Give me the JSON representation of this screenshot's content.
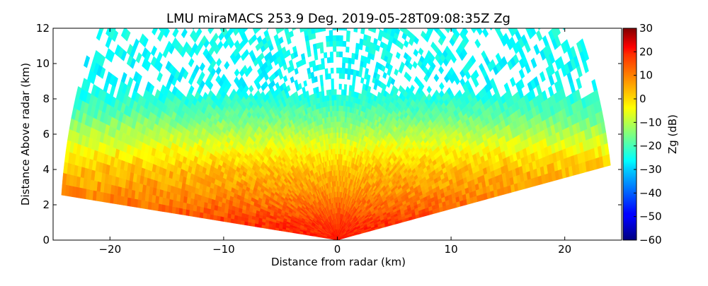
{
  "chart_data": {
    "type": "heatmap",
    "title": "LMU miraMACS 253.9 Deg. 2019-05-28T09:08:35Z  Zg",
    "xlabel": "Distance from radar (km)",
    "ylabel": "Distance Above radar  (km)",
    "xlim": [
      -25,
      25
    ],
    "ylim": [
      0,
      12
    ],
    "xticks": [
      -20,
      -10,
      0,
      10,
      20
    ],
    "xtick_labels": [
      "−20",
      "−10",
      "0",
      "10",
      "20"
    ],
    "yticks": [
      0,
      2,
      4,
      6,
      8,
      10,
      12
    ],
    "ytick_labels": [
      "0",
      "2",
      "4",
      "6",
      "8",
      "10",
      "12"
    ],
    "colorbar": {
      "label": "Zg (dB)",
      "range": [
        -60,
        30
      ],
      "ticks": [
        30,
        20,
        10,
        0,
        -10,
        -20,
        -30,
        -40,
        -50,
        -60
      ],
      "tick_labels": [
        "30",
        "20",
        "10",
        "0",
        "−10",
        "−20",
        "−30",
        "−40",
        "−50",
        "−60"
      ],
      "colormap": "jet"
    },
    "scan_sector": {
      "max_range_km": 24.4,
      "left_elevation_deg": 174,
      "right_elevation_deg": 10
    },
    "reflectivity_profile": {
      "height_km": [
        0,
        1,
        2,
        3,
        4,
        5,
        6,
        7,
        8,
        9,
        10,
        11,
        12
      ],
      "zg_db": [
        17,
        14,
        9,
        5,
        2,
        -3,
        -10,
        -17,
        -23,
        -27,
        -26,
        -25,
        -25
      ]
    }
  }
}
